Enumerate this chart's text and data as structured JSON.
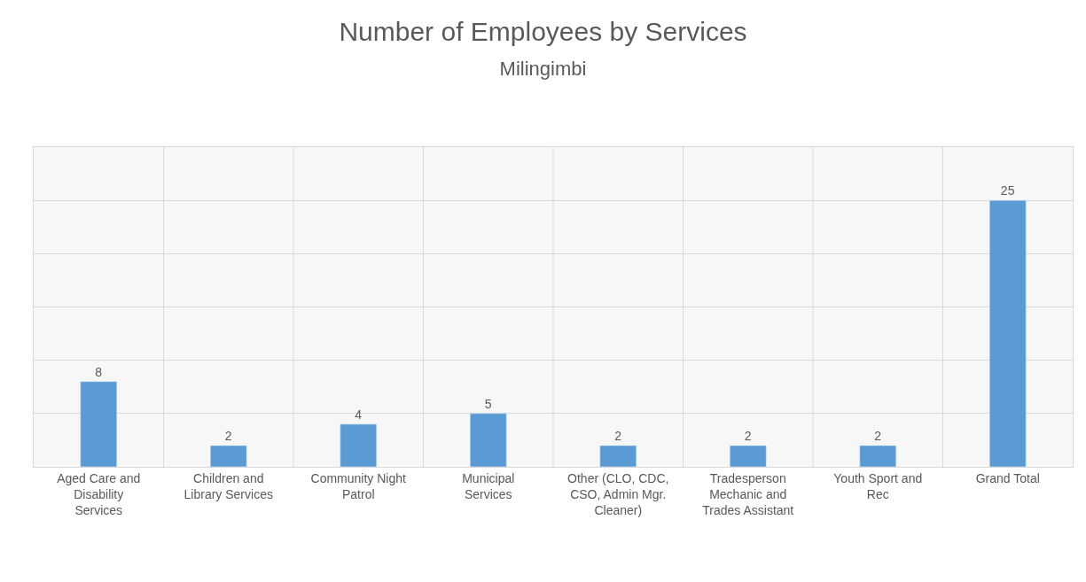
{
  "chart_data": {
    "type": "bar",
    "title": "Number of Employees by Services",
    "subtitle": "Milingimbi",
    "categories": [
      "Aged Care and Disability Services",
      "Children and Library Services",
      "Community Night Patrol",
      "Municipal Services",
      "Other (CLO, CDC, CSO, Admin Mgr. Cleaner)",
      "Tradesperson Mechanic and Trades Assistant",
      "Youth Sport and Rec",
      "Grand Total"
    ],
    "values": [
      8,
      2,
      4,
      5,
      2,
      2,
      2,
      25
    ],
    "color": "#5b9bd5",
    "data_labels": true,
    "ylim": [
      0,
      30
    ],
    "yticks": [
      0,
      5,
      10,
      15,
      20,
      25,
      30
    ],
    "tick_labels": "x",
    "grid": true
  }
}
